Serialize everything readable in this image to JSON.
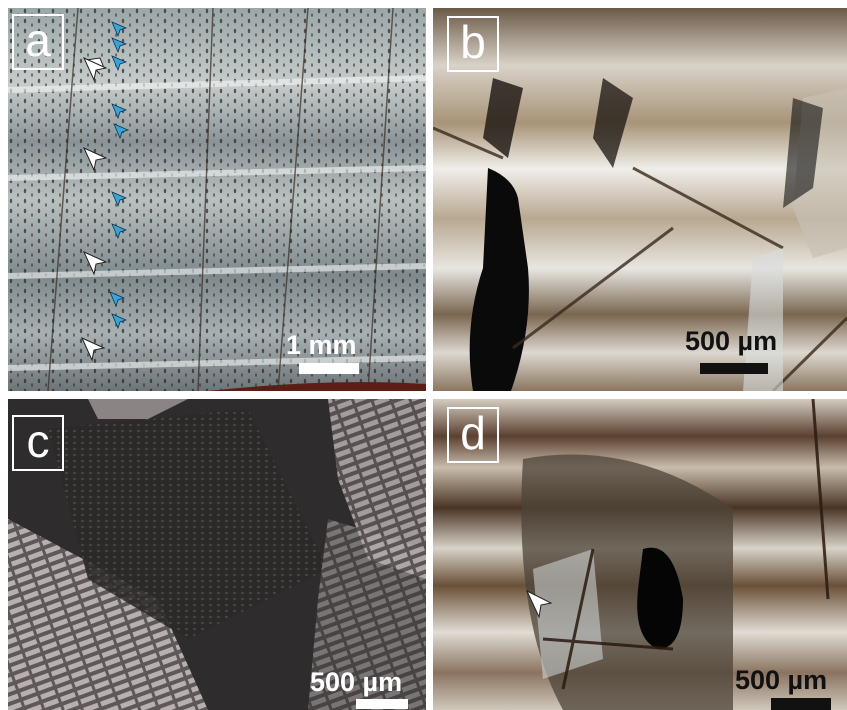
{
  "panels": [
    {
      "letter": "a",
      "scale": "1 mm"
    },
    {
      "letter": "b",
      "scale": "500 µm"
    },
    {
      "letter": "c",
      "scale": "500 µm"
    },
    {
      "letter": "d",
      "scale": "500 µm"
    }
  ],
  "colors": {
    "arrow_white": "#ffffff",
    "arrow_blue": "#3aa3d8",
    "panel_a_base": "#8c9aa0",
    "panel_b_base": "#c9c3b8",
    "panel_c_base": "#3a3838",
    "panel_d_base": "#6a5a4a"
  }
}
